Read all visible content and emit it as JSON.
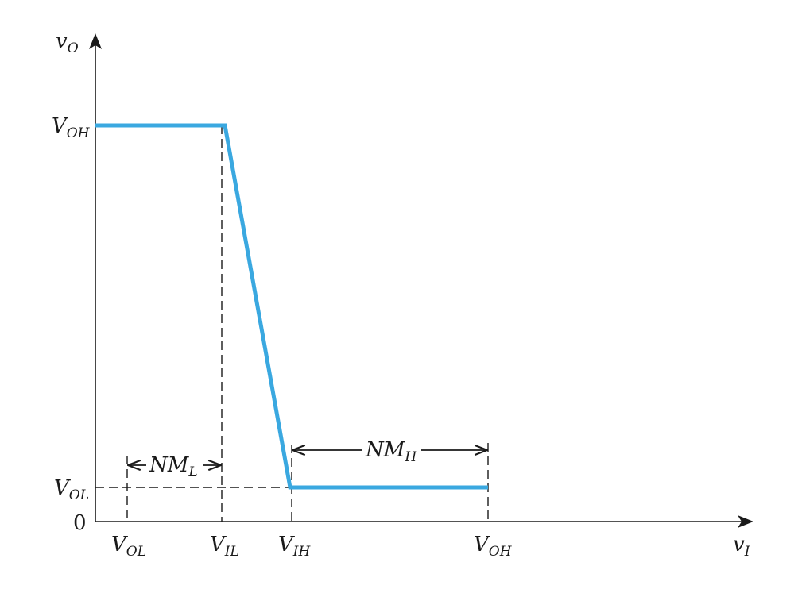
{
  "axes": {
    "y_label": {
      "main": "v",
      "sub": "O"
    },
    "x_label": {
      "main": "v",
      "sub": "I"
    },
    "origin_label": "0"
  },
  "y_ticks": {
    "voh": {
      "main": "V",
      "sub": "OH"
    },
    "vol": {
      "main": "V",
      "sub": "OL"
    }
  },
  "x_ticks": {
    "vol": {
      "main": "V",
      "sub": "OL"
    },
    "vil": {
      "main": "V",
      "sub": "IL"
    },
    "vih": {
      "main": "V",
      "sub": "IH"
    },
    "voh": {
      "main": "V",
      "sub": "OH"
    }
  },
  "margins": {
    "nml": {
      "main": "NM",
      "sub": "L"
    },
    "nmh": {
      "main": "NM",
      "sub": "H"
    }
  },
  "colors": {
    "curve": "#3aa8e0",
    "ink": "#1a1a1a"
  }
}
